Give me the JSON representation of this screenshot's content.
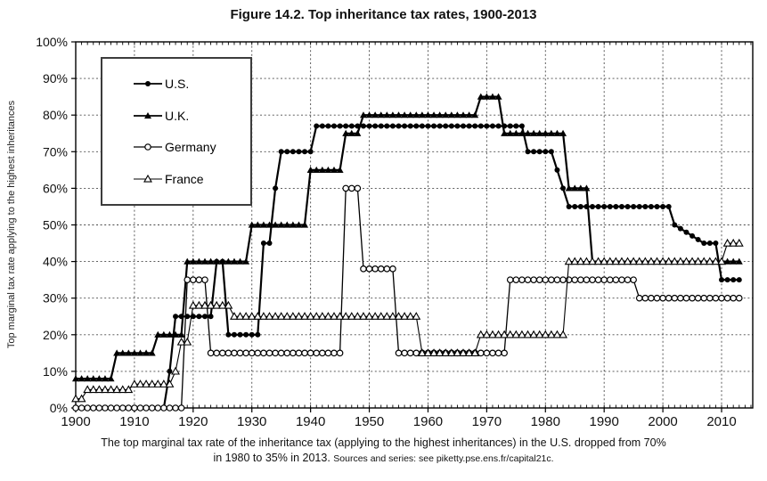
{
  "figure": {
    "title": "Figure 14.2. Top inheritance tax rates, 1900-2013",
    "caption_line1": "The top marginal tax rate of the inheritance tax (applying to the highest inheritances) in the U.S. dropped from 70%",
    "caption_line2": "in 1980 to 35% in 2013.",
    "source_note": "Sources and series: see piketty.pse.ens.fr/capital21c."
  },
  "chart_data": {
    "type": "line",
    "title": "Figure 14.2. Top inheritance tax rates, 1900-2013",
    "xlabel": "",
    "ylabel": "Top marginal tax rate applying to the highest inheritances",
    "x_range": [
      1900,
      2013
    ],
    "ylim": [
      0,
      100
    ],
    "x_ticks": [
      1900,
      1910,
      1920,
      1930,
      1940,
      1950,
      1960,
      1970,
      1980,
      1990,
      2000,
      2010
    ],
    "y_ticks": [
      0,
      10,
      20,
      30,
      40,
      50,
      60,
      70,
      80,
      90,
      100
    ],
    "y_tick_suffix": "%",
    "grid": "dashed-both-axes",
    "legend_position": "upper-left",
    "colors": {
      "foreground": "#000000",
      "background": "#ffffff",
      "gridline": "#4a4a4a"
    },
    "series": [
      {
        "name": "U.S.",
        "marker": "filled-circle",
        "color": "#000000",
        "line_width": 2.2,
        "segments": [
          {
            "from": 1900,
            "to": 1915,
            "value": 0
          },
          {
            "from": 1916,
            "to": 1916,
            "value": 10
          },
          {
            "from": 1917,
            "to": 1923,
            "value": 25
          },
          {
            "from": 1924,
            "to": 1925,
            "value": 40
          },
          {
            "from": 1926,
            "to": 1931,
            "value": 20
          },
          {
            "from": 1932,
            "to": 1933,
            "value": 45
          },
          {
            "from": 1934,
            "to": 1934,
            "value": 60
          },
          {
            "from": 1935,
            "to": 1940,
            "value": 70
          },
          {
            "from": 1941,
            "to": 1976,
            "value": 77
          },
          {
            "from": 1977,
            "to": 1981,
            "value": 70
          },
          {
            "from": 1982,
            "to": 1982,
            "value": 65
          },
          {
            "from": 1983,
            "to": 1983,
            "value": 60
          },
          {
            "from": 1984,
            "to": 2001,
            "value": 55
          },
          {
            "from": 2002,
            "to": 2002,
            "value": 50
          },
          {
            "from": 2003,
            "to": 2003,
            "value": 49
          },
          {
            "from": 2004,
            "to": 2004,
            "value": 48
          },
          {
            "from": 2005,
            "to": 2005,
            "value": 47
          },
          {
            "from": 2006,
            "to": 2006,
            "value": 46
          },
          {
            "from": 2007,
            "to": 2009,
            "value": 45
          },
          {
            "from": 2010,
            "to": 2013,
            "value": 35
          }
        ]
      },
      {
        "name": "U.K.",
        "marker": "filled-triangle",
        "color": "#000000",
        "line_width": 2.2,
        "segments": [
          {
            "from": 1900,
            "to": 1906,
            "value": 8
          },
          {
            "from": 1907,
            "to": 1913,
            "value": 15
          },
          {
            "from": 1914,
            "to": 1918,
            "value": 20
          },
          {
            "from": 1919,
            "to": 1929,
            "value": 40
          },
          {
            "from": 1930,
            "to": 1939,
            "value": 50
          },
          {
            "from": 1940,
            "to": 1945,
            "value": 65
          },
          {
            "from": 1946,
            "to": 1948,
            "value": 75
          },
          {
            "from": 1949,
            "to": 1968,
            "value": 80
          },
          {
            "from": 1969,
            "to": 1972,
            "value": 85
          },
          {
            "from": 1973,
            "to": 1983,
            "value": 75
          },
          {
            "from": 1984,
            "to": 1987,
            "value": 60
          },
          {
            "from": 1988,
            "to": 2013,
            "value": 40
          }
        ]
      },
      {
        "name": "Germany",
        "marker": "open-circle",
        "color": "#000000",
        "line_width": 1.3,
        "segments": [
          {
            "from": 1900,
            "to": 1918,
            "value": 0
          },
          {
            "from": 1919,
            "to": 1922,
            "value": 35
          },
          {
            "from": 1923,
            "to": 1945,
            "value": 15
          },
          {
            "from": 1946,
            "to": 1948,
            "value": 60
          },
          {
            "from": 1949,
            "to": 1954,
            "value": 38
          },
          {
            "from": 1955,
            "to": 1973,
            "value": 15
          },
          {
            "from": 1974,
            "to": 1995,
            "value": 35
          },
          {
            "from": 1996,
            "to": 2013,
            "value": 30
          }
        ]
      },
      {
        "name": "France",
        "marker": "open-triangle",
        "color": "#000000",
        "line_width": 1.1,
        "segments": [
          {
            "from": 1900,
            "to": 1901,
            "value": 2.5
          },
          {
            "from": 1902,
            "to": 1909,
            "value": 5
          },
          {
            "from": 1910,
            "to": 1916,
            "value": 6.5
          },
          {
            "from": 1917,
            "to": 1917,
            "value": 10
          },
          {
            "from": 1918,
            "to": 1919,
            "value": 18
          },
          {
            "from": 1920,
            "to": 1926,
            "value": 28
          },
          {
            "from": 1927,
            "to": 1958,
            "value": 25
          },
          {
            "from": 1959,
            "to": 1968,
            "value": 15
          },
          {
            "from": 1969,
            "to": 1983,
            "value": 20
          },
          {
            "from": 1984,
            "to": 2010,
            "value": 40
          },
          {
            "from": 2011,
            "to": 2013,
            "value": 45
          }
        ]
      }
    ]
  }
}
